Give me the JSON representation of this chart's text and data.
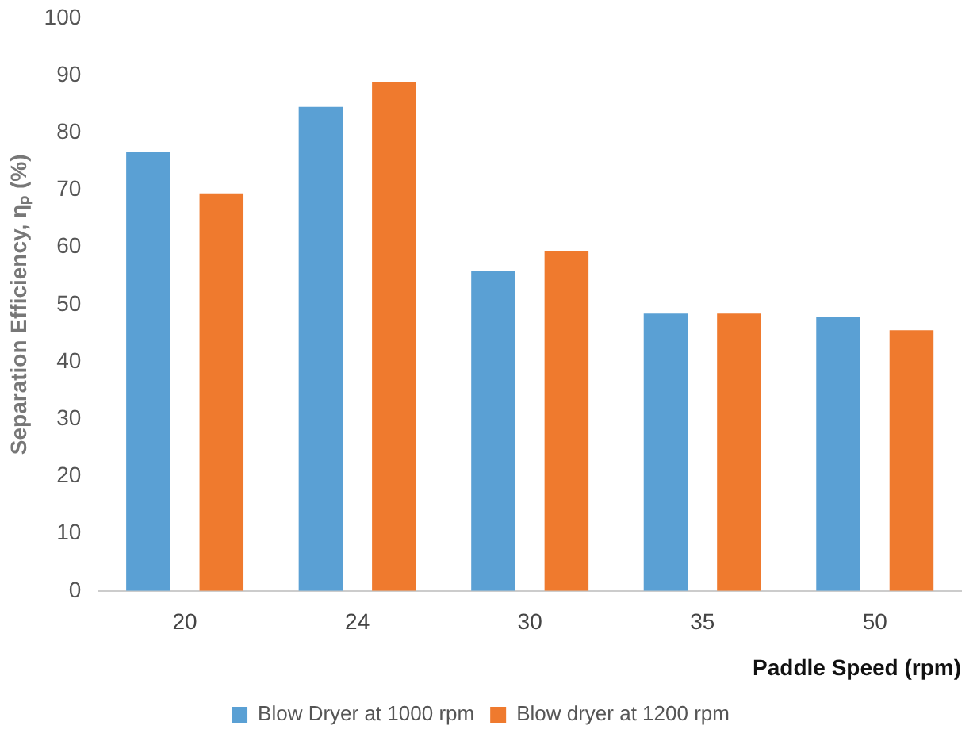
{
  "chart_data": {
    "type": "bar",
    "xlabel": "Paddle Speed (rpm)",
    "ylabel": "Separation Efficiency, ηₚ (%)",
    "categories": [
      "20",
      "24",
      "30",
      "35",
      "50"
    ],
    "series": [
      {
        "name": "Blow Dryer at 1000 rpm",
        "color": "#5aa0d4",
        "values": [
          76.6,
          84.5,
          55.8,
          48.4,
          47.8
        ]
      },
      {
        "name": "Blow dryer at 1200 rpm",
        "color": "#ef7a2e",
        "values": [
          69.4,
          88.9,
          59.3,
          48.4,
          45.5
        ]
      }
    ],
    "ylim": [
      0,
      100
    ],
    "yticks": [
      0,
      10,
      20,
      30,
      40,
      50,
      60,
      70,
      80,
      90,
      100
    ],
    "grid": false,
    "legend": "bottom"
  }
}
